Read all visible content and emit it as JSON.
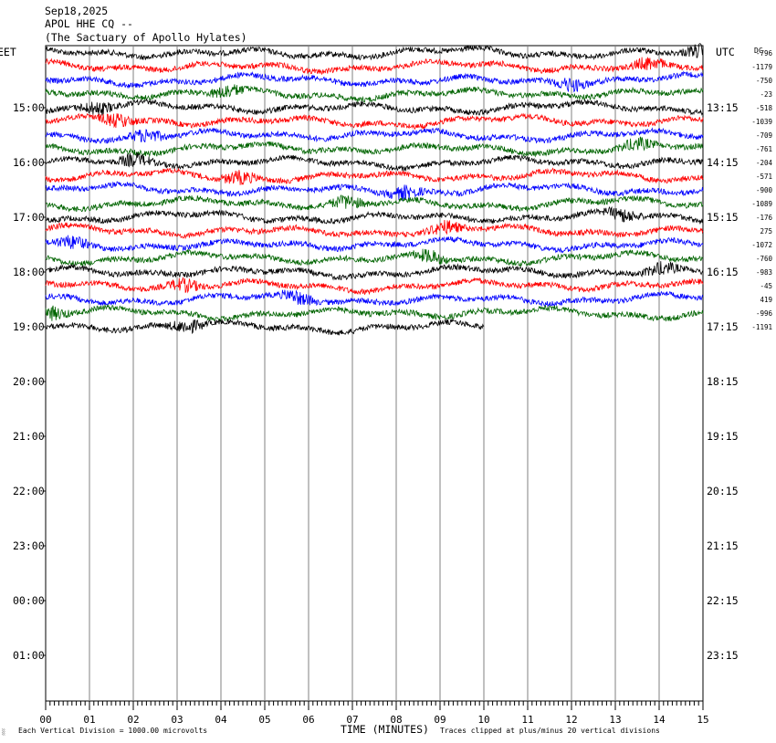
{
  "header": {
    "date": "Sep18,2025",
    "station": "APOL HHE CQ --",
    "site": "(The Sactuary of Apollo Hylates)"
  },
  "chart_data": {
    "type": "line",
    "title": "Sep18,2025",
    "left_axis_label": "EET",
    "right_axis_label": "UTC",
    "dc_label": "DC",
    "xlabel": "TIME (MINUTES)",
    "x_ticks": [
      "00",
      "01",
      "02",
      "03",
      "04",
      "05",
      "06",
      "07",
      "08",
      "09",
      "10",
      "11",
      "12",
      "13",
      "14",
      "15"
    ],
    "xlim": [
      0,
      15
    ],
    "left_hour_labels": [
      "15:00",
      "16:00",
      "17:00",
      "18:00",
      "19:00",
      "20:00",
      "21:00",
      "22:00",
      "23:00",
      "00:00",
      "01:00"
    ],
    "right_hour_labels": [
      "13:15",
      "14:15",
      "15:15",
      "16:15",
      "17:15",
      "18:15",
      "19:15",
      "20:15",
      "21:15",
      "22:15",
      "23:15"
    ],
    "traces_per_hour": 4,
    "trace_colors": [
      "#000000",
      "#ff0000",
      "#0000ff",
      "#006400"
    ],
    "dc_offsets": [
      "-796",
      "-1179",
      "-750",
      "-23",
      "-518",
      "-1039",
      "-709",
      "-761",
      "-204",
      "-571",
      "-900",
      "-1089",
      "-176",
      "275",
      "-1072",
      "-760",
      "-983",
      "-45",
      "419",
      "-996",
      "-1191"
    ],
    "last_trace_end_minute": 10,
    "footer_left": "Each Vertical Division = 1000.00 microvolts",
    "footer_right": "Traces clipped at plus/minus 20 vertical divisions",
    "grid": true
  }
}
